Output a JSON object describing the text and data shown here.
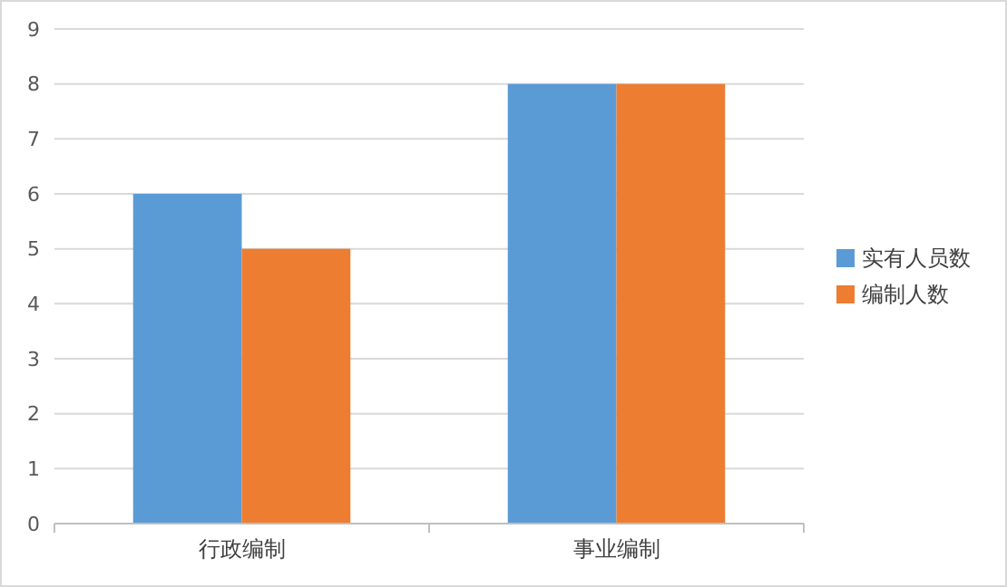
{
  "chart_data": {
    "type": "bar",
    "categories": [
      "行政编制",
      "事业编制"
    ],
    "series": [
      {
        "name": "实有人员数",
        "color": "#5b9bd5",
        "values": [
          6,
          8
        ]
      },
      {
        "name": "编制人数",
        "color": "#ed7d31",
        "values": [
          5,
          8
        ]
      }
    ],
    "ylim": [
      0,
      9
    ],
    "yticks": [
      0,
      1,
      2,
      3,
      4,
      5,
      6,
      7,
      8,
      9
    ],
    "grid": "y",
    "legend": "right"
  }
}
